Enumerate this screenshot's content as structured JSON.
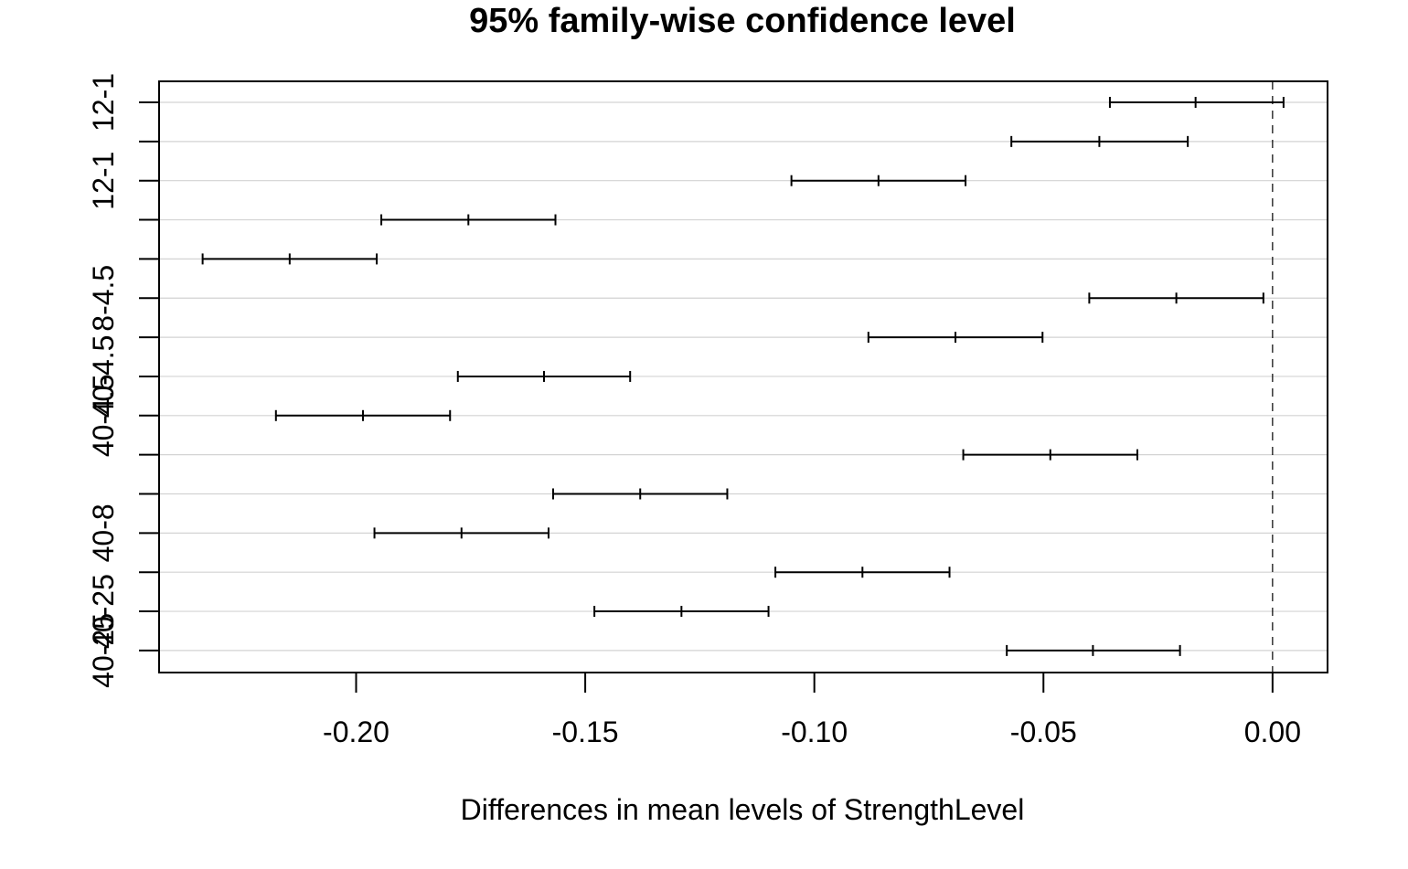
{
  "chart_data": {
    "type": "errorbar",
    "title": "95% family-wise confidence level",
    "xlabel": "Differences in mean levels of StrengthLevel",
    "ylabel": "",
    "xlim": [
      -0.243,
      0.012
    ],
    "xticks": [
      -0.2,
      -0.15,
      -0.1,
      -0.05,
      0.0
    ],
    "xtick_labels": [
      "-0.20",
      "-0.15",
      "-0.10",
      "-0.05",
      "0.00"
    ],
    "grid": "horizontal",
    "reference_line": 0.0,
    "rows": [
      {
        "label": "12-1",
        "lwr": -0.0355,
        "diff": -0.0168,
        "upr": 0.0024
      },
      {
        "label": "",
        "lwr": -0.057,
        "diff": -0.0378,
        "upr": -0.0185
      },
      {
        "label": "12-1",
        "lwr": -0.105,
        "diff": -0.086,
        "upr": -0.067
      },
      {
        "label": "",
        "lwr": -0.1945,
        "diff": -0.1755,
        "upr": -0.1565
      },
      {
        "label": "",
        "lwr": -0.2335,
        "diff": -0.2145,
        "upr": -0.1955
      },
      {
        "label": "8-4.5",
        "lwr": -0.04,
        "diff": -0.021,
        "upr": -0.002
      },
      {
        "label": "",
        "lwr": -0.0882,
        "diff": -0.0692,
        "upr": -0.0502
      },
      {
        "label": "40-4.5",
        "lwr": -0.1778,
        "diff": -0.159,
        "upr": -0.1402
      },
      {
        "label": "40-4.5",
        "lwr": -0.2175,
        "diff": -0.1985,
        "upr": -0.1795
      },
      {
        "label": "",
        "lwr": -0.0675,
        "diff": -0.0485,
        "upr": -0.0295
      },
      {
        "label": "",
        "lwr": -0.157,
        "diff": -0.138,
        "upr": -0.119
      },
      {
        "label": "40-8",
        "lwr": -0.196,
        "diff": -0.177,
        "upr": -0.158
      },
      {
        "label": "",
        "lwr": -0.1085,
        "diff": -0.0895,
        "upr": -0.0705
      },
      {
        "label": "40-25",
        "lwr": -0.148,
        "diff": -0.129,
        "upr": -0.11
      },
      {
        "label": "40-25",
        "lwr": -0.058,
        "diff": -0.0392,
        "upr": -0.0202
      }
    ],
    "visible_ylabels": [
      "12-1",
      "8-4.5",
      "40-4.5",
      "40-8",
      "40-25"
    ],
    "colors": {
      "line": "#000000",
      "grid": "#d3d3d3",
      "background": "#ffffff"
    }
  }
}
